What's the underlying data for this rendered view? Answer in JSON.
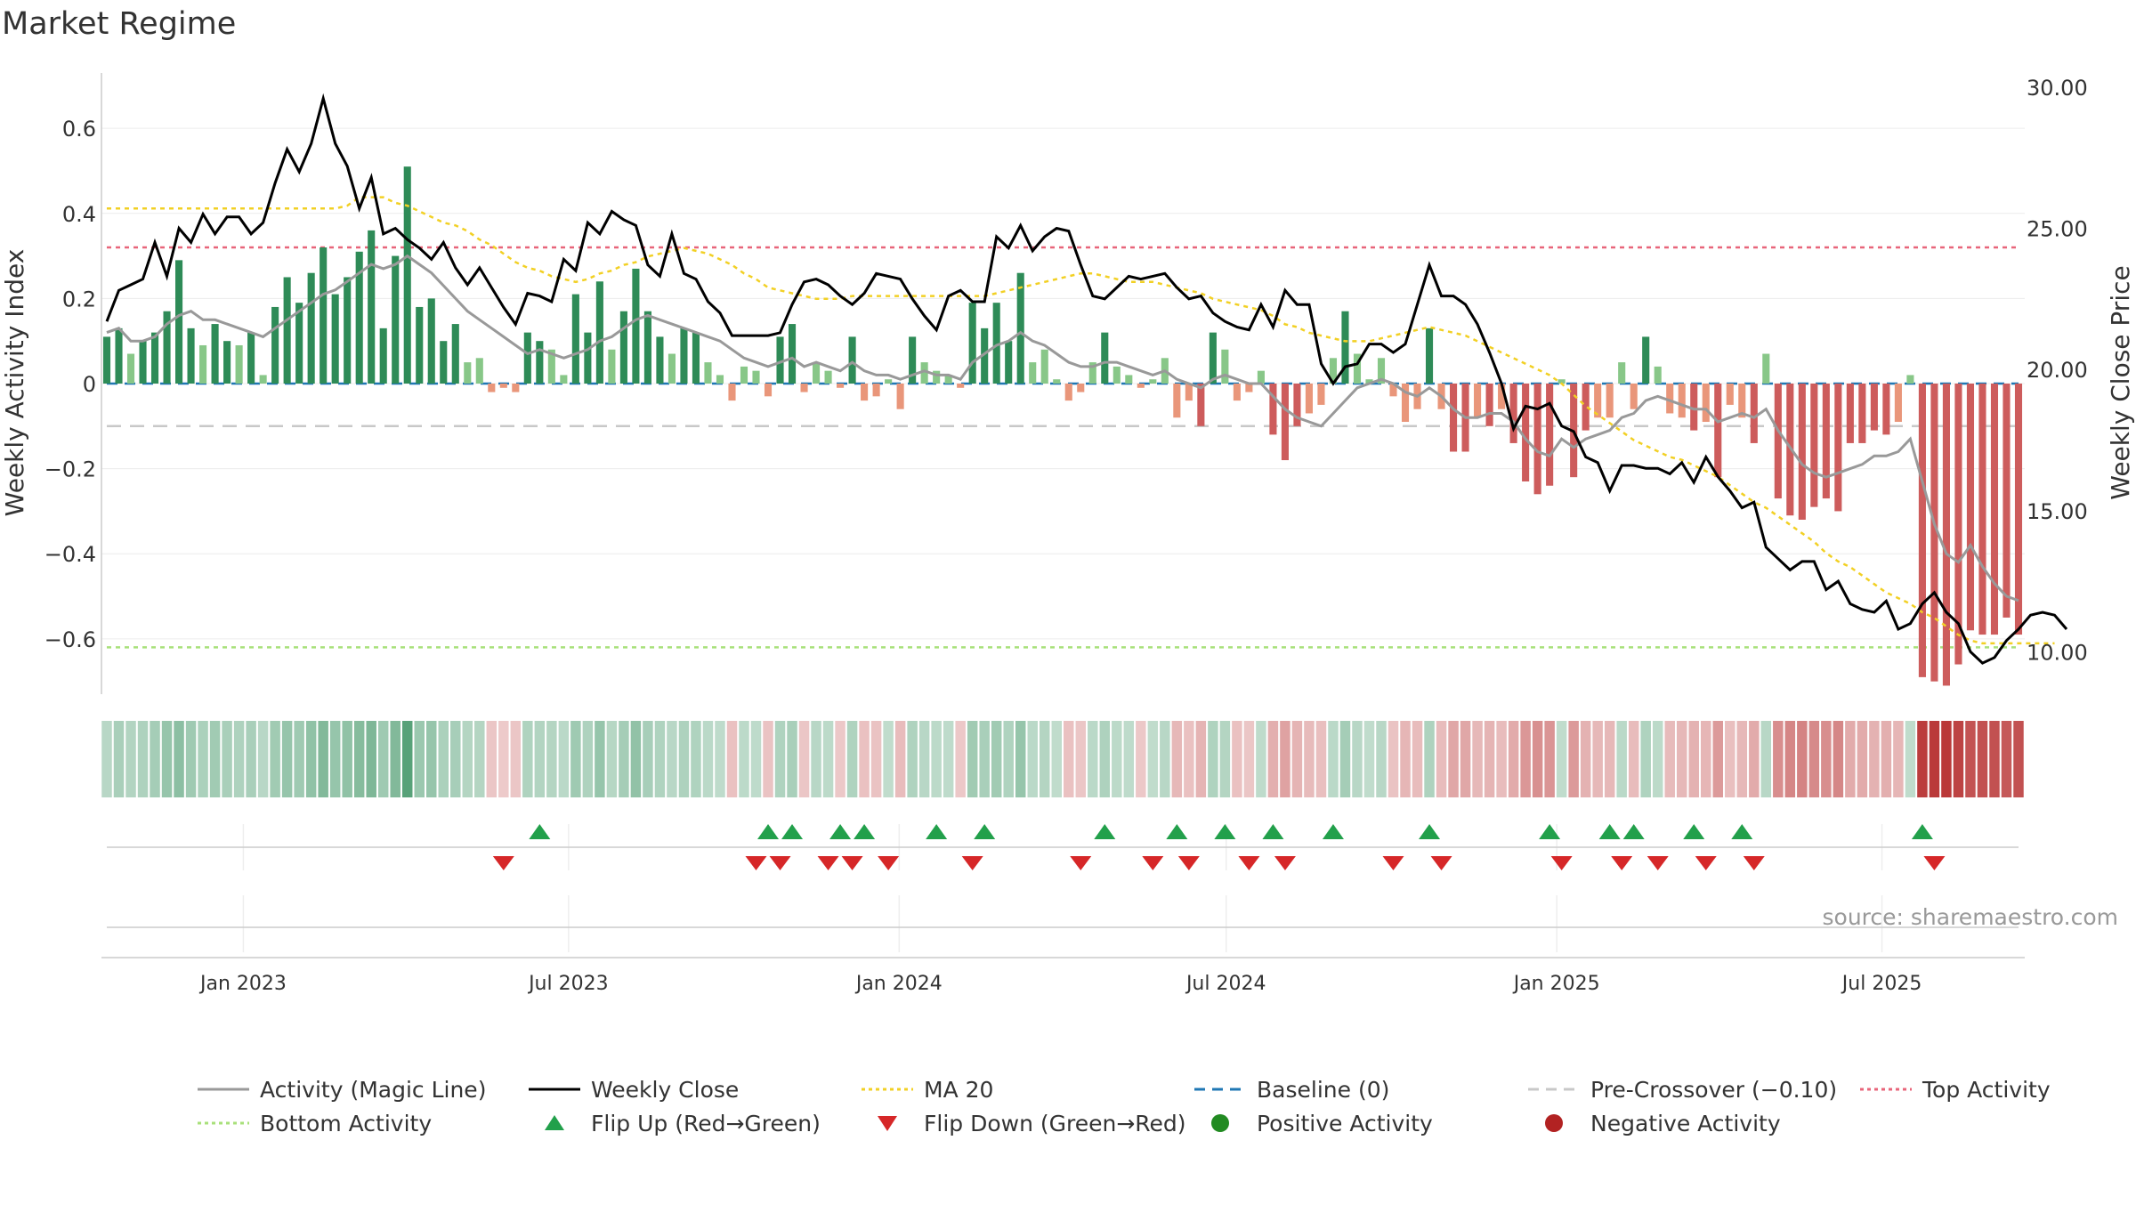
{
  "title": "Market Regime",
  "source": "source: sharemaestro.com",
  "colors": {
    "bar_green_dark": "#2e8b57",
    "bar_green_light": "#88c788",
    "bar_red_dark": "#cd5c5c",
    "bar_red_light": "#e9967a",
    "magic_line": "#999999",
    "weekly_close": "#000000",
    "ma20": "#f2d024",
    "baseline": "#1f77b4",
    "pre_crossover": "#c8c8c8",
    "top_activity": "#e8657a",
    "bottom_activity": "#a8e07a",
    "flip_up": "#22a04b",
    "flip_down": "#d62728",
    "positive": "#228b22",
    "negative": "#b22222"
  },
  "chart_data": {
    "type": "bar",
    "title": "Market Regime",
    "ylabel_left": "Weekly Activity Index",
    "ylabel_right": "Weekly Close Price",
    "left_axis": {
      "range": [
        -0.73,
        0.73
      ],
      "ticks": [
        0.6,
        0.4,
        0.2,
        0,
        -0.2,
        -0.4,
        -0.6
      ],
      "tick_labels": [
        "0.6",
        "0.4",
        "0.2",
        "0",
        "−0.2",
        "−0.4",
        "−0.6"
      ]
    },
    "right_axis": {
      "range": [
        8.5,
        30.5
      ],
      "ticks": [
        30,
        25,
        20,
        15,
        10
      ],
      "tick_labels": [
        "30.00",
        "25.00",
        "20.00",
        "15.00",
        "10.00"
      ]
    },
    "x_axis": {
      "start": "2022-10-17",
      "end": "2025-09-15",
      "ticks": [
        "2023-01-01",
        "2023-07-01",
        "2024-01-01",
        "2024-07-01",
        "2025-01-01",
        "2025-07-01"
      ],
      "tick_labels": [
        "Jan 2023",
        "Jul 2023",
        "Jan 2024",
        "Jul 2024",
        "Jan 2025",
        "Jul 2025"
      ]
    },
    "levels": {
      "baseline": 0,
      "pre_crossover": -0.1,
      "top_activity": 0.32,
      "bottom_activity": -0.62
    },
    "activity": [
      0.11,
      0.13,
      0.07,
      0.1,
      0.12,
      0.17,
      0.29,
      0.13,
      0.09,
      0.14,
      0.1,
      0.09,
      0.12,
      0.02,
      0.18,
      0.25,
      0.19,
      0.26,
      0.32,
      0.21,
      0.25,
      0.31,
      0.36,
      0.13,
      0.3,
      0.51,
      0.18,
      0.2,
      0.1,
      0.14,
      0.05,
      0.06,
      -0.02,
      -0.01,
      -0.02,
      0.12,
      0.1,
      0.08,
      0.02,
      0.21,
      0.12,
      0.24,
      0.08,
      0.17,
      0.27,
      0.17,
      0.11,
      0.07,
      0.13,
      0.12,
      0.05,
      0.02,
      -0.04,
      0.04,
      0.03,
      -0.03,
      0.11,
      0.14,
      -0.02,
      0.05,
      0.03,
      -0.01,
      0.11,
      -0.04,
      -0.03,
      0.01,
      -0.06,
      0.11,
      0.05,
      0.03,
      0.02,
      -0.01,
      0.19,
      0.13,
      0.19,
      0.1,
      0.26,
      0.05,
      0.08,
      0.01,
      -0.04,
      -0.02,
      0.05,
      0.12,
      0.04,
      0.02,
      -0.01,
      0.01,
      0.06,
      -0.08,
      -0.04,
      -0.1,
      0.12,
      0.08,
      -0.04,
      -0.02,
      0.03,
      -0.12,
      -0.18,
      -0.1,
      -0.07,
      -0.05,
      0.06,
      0.17,
      0.07,
      0.01,
      0.06,
      -0.03,
      -0.09,
      -0.06,
      0.13,
      -0.06,
      -0.16,
      -0.16,
      -0.08,
      -0.1,
      -0.06,
      -0.14,
      -0.23,
      -0.26,
      -0.24,
      0.01,
      -0.22,
      -0.11,
      -0.08,
      -0.08,
      0.05,
      -0.06,
      0.11,
      0.04,
      -0.07,
      -0.08,
      -0.11,
      -0.09,
      -0.22,
      -0.05,
      -0.08,
      -0.14,
      0.07,
      -0.27,
      -0.31,
      -0.32,
      -0.29,
      -0.27,
      -0.3,
      -0.14,
      -0.14,
      -0.11,
      -0.12,
      -0.09,
      0.02,
      -0.69,
      -0.7,
      -0.71,
      -0.66,
      -0.58,
      -0.59,
      -0.59,
      -0.55,
      -0.59
    ],
    "magic_line": [
      0.12,
      0.13,
      0.1,
      0.1,
      0.11,
      0.14,
      0.16,
      0.17,
      0.15,
      0.15,
      0.14,
      0.13,
      0.12,
      0.11,
      0.13,
      0.15,
      0.17,
      0.19,
      0.21,
      0.22,
      0.24,
      0.26,
      0.28,
      0.27,
      0.28,
      0.3,
      0.28,
      0.26,
      0.23,
      0.2,
      0.17,
      0.15,
      0.13,
      0.11,
      0.09,
      0.07,
      0.08,
      0.07,
      0.06,
      0.07,
      0.08,
      0.1,
      0.11,
      0.13,
      0.15,
      0.16,
      0.15,
      0.14,
      0.13,
      0.12,
      0.11,
      0.1,
      0.08,
      0.06,
      0.05,
      0.04,
      0.05,
      0.06,
      0.04,
      0.05,
      0.04,
      0.03,
      0.05,
      0.03,
      0.02,
      0.02,
      0.01,
      0.02,
      0.03,
      0.02,
      0.02,
      0.01,
      0.05,
      0.07,
      0.09,
      0.1,
      0.12,
      0.1,
      0.09,
      0.07,
      0.05,
      0.04,
      0.04,
      0.05,
      0.05,
      0.04,
      0.03,
      0.02,
      0.03,
      0.01,
      0,
      -0.01,
      0.01,
      0.02,
      0.01,
      0,
      0,
      -0.03,
      -0.06,
      -0.08,
      -0.09,
      -0.1,
      -0.07,
      -0.04,
      -0.01,
      0,
      0.01,
      0,
      -0.02,
      -0.03,
      -0.01,
      -0.03,
      -0.06,
      -0.08,
      -0.08,
      -0.07,
      -0.07,
      -0.09,
      -0.13,
      -0.16,
      -0.17,
      -0.13,
      -0.15,
      -0.13,
      -0.12,
      -0.11,
      -0.08,
      -0.07,
      -0.04,
      -0.03,
      -0.04,
      -0.05,
      -0.06,
      -0.06,
      -0.09,
      -0.08,
      -0.07,
      -0.08,
      -0.06,
      -0.11,
      -0.15,
      -0.19,
      -0.21,
      -0.22,
      -0.21,
      -0.2,
      -0.19,
      -0.17,
      -0.17,
      -0.16,
      -0.13,
      -0.23,
      -0.33,
      -0.4,
      -0.42,
      -0.38,
      -0.43,
      -0.47,
      -0.5,
      -0.51
    ],
    "weekly_close": [
      21.7,
      22.8,
      23,
      23.2,
      24.5,
      23.3,
      25,
      24.5,
      25.5,
      24.8,
      25.4,
      25.4,
      24.8,
      25.2,
      26.6,
      27.8,
      27,
      28,
      29.6,
      28,
      27.2,
      25.7,
      26.8,
      24.8,
      25,
      24.6,
      24.3,
      23.9,
      24.5,
      23.6,
      23,
      23.6,
      22.9,
      22.2,
      21.6,
      22.7,
      22.6,
      22.4,
      23.9,
      23.5,
      25.2,
      24.8,
      25.6,
      25.3,
      25.1,
      23.7,
      23.3,
      24.8,
      23.4,
      23.2,
      22.4,
      22,
      21.2,
      21.2,
      21.2,
      21.2,
      21.3,
      22.3,
      23.1,
      23.2,
      23,
      22.6,
      22.3,
      22.7,
      23.4,
      23.3,
      23.2,
      22.5,
      21.9,
      21.4,
      22.6,
      22.8,
      22.4,
      22.4,
      24.7,
      24.3,
      25.1,
      24.2,
      24.7,
      25,
      24.9,
      23.7,
      22.6,
      22.5,
      22.9,
      23.3,
      23.2,
      23.3,
      23.4,
      22.9,
      22.5,
      22.6,
      22,
      21.7,
      21.5,
      21.4,
      22.3,
      21.5,
      22.8,
      22.3,
      22.3,
      20.2,
      19.5,
      20.1,
      20.2,
      20.9,
      20.9,
      20.6,
      20.9,
      22.3,
      23.7,
      22.6,
      22.6,
      22.3,
      21.6,
      20.6,
      19.5,
      17.9,
      18.7,
      18.6,
      18.8,
      18,
      17.8,
      16.9,
      16.7,
      15.7,
      16.6,
      16.6,
      16.5,
      16.5,
      16.3,
      16.7,
      16,
      16.9,
      16.2,
      15.7,
      15.1,
      15.3,
      13.7,
      13.3,
      12.9,
      13.2,
      13.2,
      12.2,
      12.5,
      11.7,
      11.5,
      11.4,
      11.8,
      10.8,
      11,
      11.7,
      12.1,
      11.4,
      11,
      10,
      9.6,
      9.8,
      10.4,
      10.8,
      11.3,
      11.4,
      11.3,
      10.8
    ],
    "ma20": [
      25.7,
      25.7,
      25.7,
      25.7,
      25.7,
      25.7,
      25.7,
      25.7,
      25.7,
      25.7,
      25.7,
      25.7,
      25.7,
      25.7,
      25.7,
      25.7,
      25.7,
      25.7,
      25.7,
      25.7,
      25.8,
      26.1,
      26.1,
      26.1,
      25.9,
      25.8,
      25.6,
      25.4,
      25.2,
      25.1,
      24.9,
      24.6,
      24.4,
      24.1,
      23.8,
      23.6,
      23.5,
      23.3,
      23.2,
      23.1,
      23.2,
      23.4,
      23.5,
      23.7,
      23.8,
      24,
      24.1,
      24.2,
      24.3,
      24.2,
      24.1,
      23.9,
      23.7,
      23.4,
      23.2,
      22.9,
      22.8,
      22.7,
      22.6,
      22.5,
      22.5,
      22.5,
      22.6,
      22.6,
      22.6,
      22.6,
      22.6,
      22.6,
      22.6,
      22.6,
      22.6,
      22.6,
      22.6,
      22.6,
      22.7,
      22.8,
      22.9,
      23,
      23.1,
      23.2,
      23.3,
      23.4,
      23.4,
      23.3,
      23.2,
      23.1,
      23.1,
      23.1,
      23,
      22.9,
      22.8,
      22.7,
      22.5,
      22.4,
      22.3,
      22.2,
      22.1,
      21.9,
      21.6,
      21.5,
      21.3,
      21.2,
      21.1,
      21,
      21,
      21,
      21.1,
      21.2,
      21.3,
      21.4,
      21.5,
      21.4,
      21.3,
      21.2,
      21,
      20.8,
      20.6,
      20.4,
      20.2,
      20,
      19.8,
      19.5,
      19.1,
      18.7,
      18.4,
      18.1,
      17.8,
      17.5,
      17.3,
      17.1,
      16.9,
      16.8,
      16.6,
      16.4,
      16.2,
      15.9,
      15.6,
      15.3,
      15.1,
      14.8,
      14.5,
      14.2,
      13.9,
      13.5,
      13.2,
      13,
      12.7,
      12.4,
      12.1,
      11.9,
      11.7,
      11.4,
      11.2,
      10.9,
      10.6,
      10.4,
      10.3,
      10.3,
      10.3,
      10.3,
      10.3,
      10.3,
      10.3
    ],
    "regime_strip": [
      0.34,
      0.41,
      0.37,
      0.39,
      0.43,
      0.5,
      0.55,
      0.46,
      0.4,
      0.45,
      0.41,
      0.39,
      0.41,
      0.34,
      0.45,
      0.5,
      0.46,
      0.53,
      0.6,
      0.5,
      0.53,
      0.58,
      0.62,
      0.46,
      0.6,
      0.8,
      0.48,
      0.5,
      0.4,
      0.42,
      0.36,
      0.36,
      -0.26,
      -0.24,
      -0.26,
      0.38,
      0.37,
      0.36,
      0.33,
      0.46,
      0.39,
      0.5,
      0.35,
      0.43,
      0.52,
      0.42,
      0.38,
      0.34,
      0.39,
      0.38,
      0.33,
      0.31,
      -0.28,
      0.32,
      0.31,
      -0.27,
      0.38,
      0.41,
      -0.26,
      0.34,
      0.32,
      -0.25,
      0.38,
      -0.28,
      -0.27,
      0.3,
      -0.3,
      0.38,
      0.34,
      0.32,
      0.31,
      -0.25,
      0.45,
      0.41,
      0.45,
      0.38,
      0.5,
      0.33,
      0.36,
      0.3,
      -0.28,
      -0.26,
      0.33,
      0.39,
      0.32,
      0.31,
      -0.25,
      0.3,
      0.34,
      -0.32,
      -0.28,
      -0.34,
      0.38,
      0.36,
      -0.28,
      -0.26,
      0.31,
      -0.36,
      -0.42,
      -0.34,
      -0.31,
      -0.29,
      0.33,
      0.43,
      0.34,
      0.3,
      0.34,
      -0.27,
      -0.33,
      -0.3,
      0.39,
      -0.3,
      -0.4,
      -0.4,
      -0.32,
      -0.34,
      -0.3,
      -0.38,
      -0.47,
      -0.5,
      -0.48,
      0.3,
      -0.46,
      -0.35,
      -0.32,
      -0.32,
      0.33,
      -0.3,
      0.38,
      0.32,
      -0.31,
      -0.32,
      -0.35,
      -0.33,
      -0.46,
      -0.29,
      -0.32,
      -0.38,
      0.34,
      -0.51,
      -0.55,
      -0.56,
      -0.53,
      -0.51,
      -0.54,
      -0.38,
      -0.38,
      -0.35,
      -0.36,
      -0.33,
      0.3,
      -0.88,
      -0.89,
      -0.9,
      -0.85,
      -0.78,
      -0.79,
      -0.79,
      -0.75,
      -0.79
    ],
    "flip_up_idx": [
      36,
      55,
      57,
      61,
      63,
      69,
      73,
      83,
      89,
      93,
      97,
      102,
      110,
      120,
      125,
      127,
      132,
      136,
      151
    ],
    "flip_down_idx": [
      33,
      54,
      56,
      60,
      62,
      65,
      72,
      81,
      87,
      90,
      95,
      98,
      107,
      111,
      121,
      126,
      129,
      133,
      137,
      152
    ]
  },
  "legend": {
    "row1": [
      {
        "label": "Activity (Magic Line)",
        "type": "line",
        "color": "#999999",
        "dash": ""
      },
      {
        "label": "Weekly Close",
        "type": "line",
        "color": "#000000",
        "dash": ""
      },
      {
        "label": "MA 20",
        "type": "line",
        "color": "#f2d024",
        "dash": "4,4"
      },
      {
        "label": "Baseline (0)",
        "type": "line",
        "color": "#1f77b4",
        "dash": "12,8"
      },
      {
        "label": "Pre-Crossover (−0.10)",
        "type": "line",
        "color": "#c8c8c8",
        "dash": "12,8"
      },
      {
        "label": "Top Activity",
        "type": "line",
        "color": "#e8657a",
        "dash": "4,4"
      }
    ],
    "row2": [
      {
        "label": "Bottom Activity",
        "type": "line",
        "color": "#a8e07a",
        "dash": "4,4"
      },
      {
        "label": "Flip Up (Red→Green)",
        "type": "tri-up",
        "color": "#22a04b"
      },
      {
        "label": "Flip Down (Green→Red)",
        "type": "tri-down",
        "color": "#d62728"
      },
      {
        "label": "Positive Activity",
        "type": "dot",
        "color": "#228b22"
      },
      {
        "label": "Negative Activity",
        "type": "dot",
        "color": "#b22222"
      }
    ]
  }
}
